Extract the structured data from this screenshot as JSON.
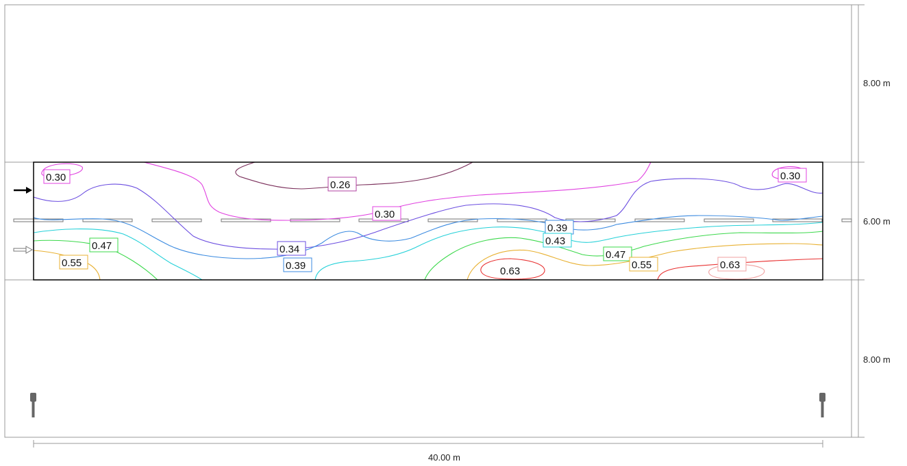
{
  "dimensions": {
    "upper_width": "8.00 m",
    "road_width": "6.00 m",
    "lower_width": "8.00 m",
    "length": "40.00 m"
  },
  "contour_levels": [
    {
      "value": "0.26",
      "color": "#7a2e5a"
    },
    {
      "value": "0.30",
      "color": "#e040e0"
    },
    {
      "value": "0.34",
      "color": "#6a4ce0"
    },
    {
      "value": "0.39",
      "color": "#3a8ae0"
    },
    {
      "value": "0.43",
      "color": "#22d0d8"
    },
    {
      "value": "0.47",
      "color": "#3ad84a"
    },
    {
      "value": "0.55",
      "color": "#e8b030"
    },
    {
      "value": "0.63",
      "color": "#e83030"
    }
  ],
  "contour_labels": [
    {
      "text": "0.30",
      "level": "0.30"
    },
    {
      "text": "0.26",
      "level": "0.26"
    },
    {
      "text": "0.30",
      "level": "0.30"
    },
    {
      "text": "0.30",
      "level": "0.30"
    },
    {
      "text": "0.47",
      "level": "0.47"
    },
    {
      "text": "0.34",
      "level": "0.34"
    },
    {
      "text": "0.39",
      "level": "0.39"
    },
    {
      "text": "0.39",
      "level": "0.39"
    },
    {
      "text": "0.43",
      "level": "0.43"
    },
    {
      "text": "0.55",
      "level": "0.55"
    },
    {
      "text": "0.47",
      "level": "0.47"
    },
    {
      "text": "0.55",
      "level": "0.55"
    },
    {
      "text": "0.63",
      "level": "0.63"
    },
    {
      "text": "0.63",
      "level": "0.63"
    }
  ],
  "colors": {
    "frame": "#000000",
    "guide": "#999999",
    "lane_marking": "#777777",
    "luminaire": "#666666"
  }
}
